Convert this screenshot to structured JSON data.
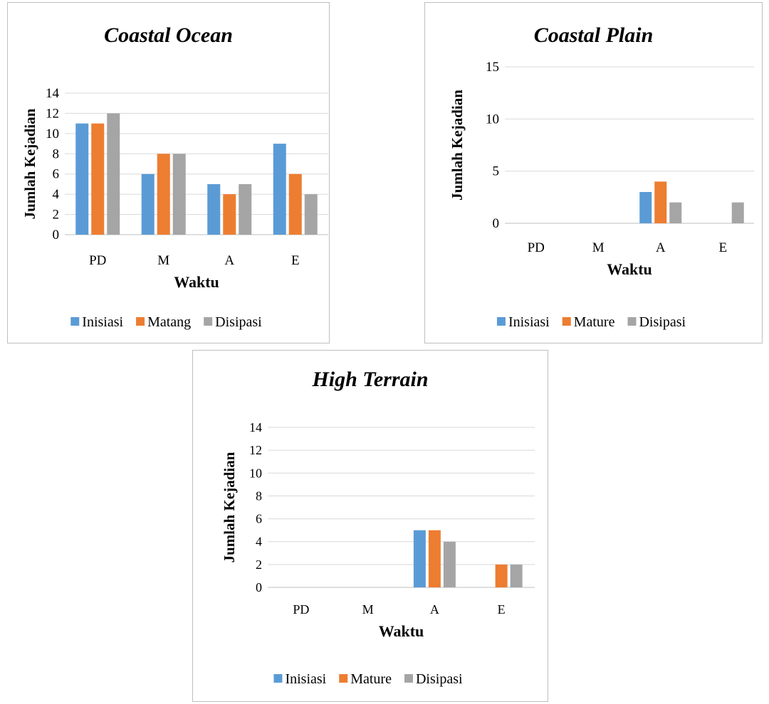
{
  "colors": {
    "series": [
      "#5b9bd5",
      "#ed7d31",
      "#a5a5a5"
    ],
    "grid": "#d9d9d9",
    "axis": "#bfbfbf"
  },
  "chart_data": [
    {
      "type": "bar",
      "title": "Coastal Ocean",
      "xlabel": "Waktu",
      "ylabel": "Jumlah Kejadian",
      "categories": [
        "PD",
        "M",
        "A",
        "E"
      ],
      "ylim": [
        0,
        14
      ],
      "yticks": [
        0,
        2,
        4,
        6,
        8,
        10,
        12,
        14
      ],
      "grid": true,
      "legend": "bottom",
      "series": [
        {
          "name": "Inisiasi",
          "values": [
            11,
            6,
            5,
            9
          ]
        },
        {
          "name": "Matang",
          "values": [
            11,
            8,
            4,
            6
          ]
        },
        {
          "name": "Disipasi",
          "values": [
            12,
            8,
            5,
            4
          ]
        }
      ]
    },
    {
      "type": "bar",
      "title": "Coastal Plain",
      "xlabel": "Waktu",
      "ylabel": "Jumlah Kejadian",
      "categories": [
        "PD",
        "M",
        "A",
        "E"
      ],
      "ylim": [
        0,
        15
      ],
      "yticks": [
        0,
        5,
        10,
        15
      ],
      "grid": true,
      "legend": "bottom",
      "series": [
        {
          "name": "Inisiasi",
          "values": [
            0,
            0,
            3,
            0
          ]
        },
        {
          "name": "Mature",
          "values": [
            0,
            0,
            4,
            0
          ]
        },
        {
          "name": "Disipasi",
          "values": [
            0,
            0,
            2,
            2
          ]
        }
      ]
    },
    {
      "type": "bar",
      "title": "High Terrain",
      "xlabel": "Waktu",
      "ylabel": "Jumlah Kejadian",
      "categories": [
        "PD",
        "M",
        "A",
        "E"
      ],
      "ylim": [
        0,
        14
      ],
      "yticks": [
        0,
        2,
        4,
        6,
        8,
        10,
        12,
        14
      ],
      "grid": true,
      "legend": "bottom",
      "series": [
        {
          "name": "Inisiasi",
          "values": [
            0,
            0,
            5,
            0
          ]
        },
        {
          "name": "Mature",
          "values": [
            0,
            0,
            5,
            2
          ]
        },
        {
          "name": "Disipasi",
          "values": [
            0,
            0,
            4,
            2
          ]
        }
      ]
    }
  ]
}
